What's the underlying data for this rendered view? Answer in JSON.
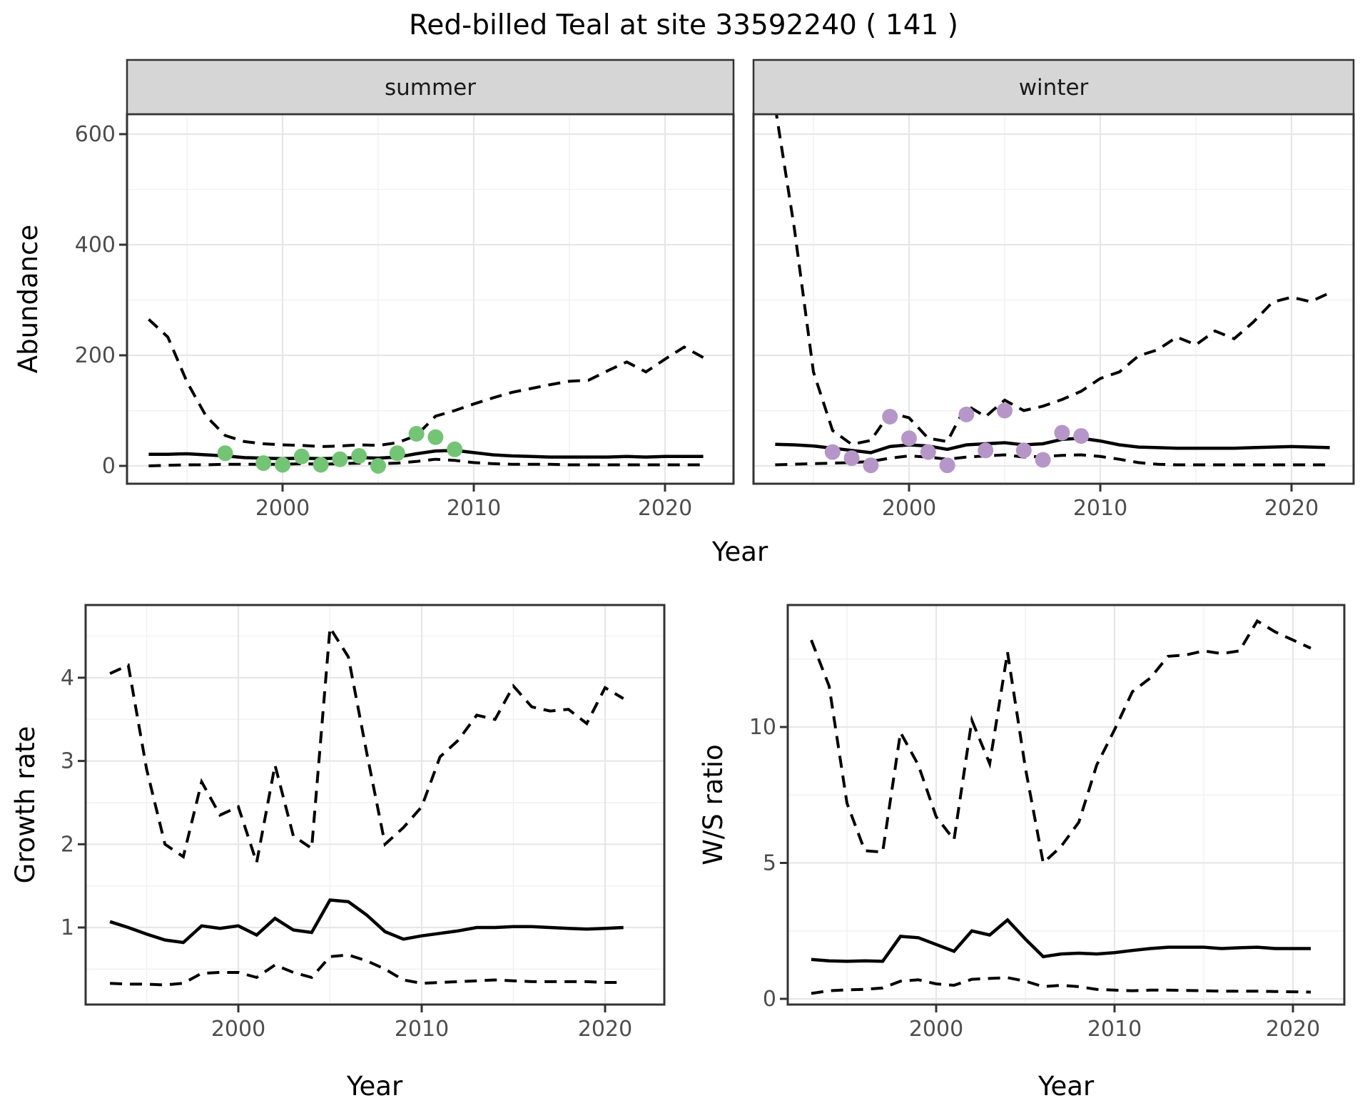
{
  "title": "Red-billed Teal at site 33592240 ( 141 )",
  "axis_titles": {
    "abundance": "Abundance",
    "growth_rate": "Growth rate",
    "ws_ratio": "W/S ratio",
    "year": "Year"
  },
  "facets": [
    {
      "label": "summer"
    },
    {
      "label": "winter"
    }
  ],
  "colors": {
    "summer_points": "#74c476",
    "winter_points": "#b696c8",
    "line": "#000000",
    "grid_major": "#e7e7e7",
    "grid_minor": "#f1f1f1",
    "strip_bg": "#d6d6d6",
    "panel_border": "#333333",
    "tick_label": "#4d4d4d"
  },
  "chart_data": [
    {
      "id": "abundance-summer",
      "type": "line",
      "facet_label": "summer",
      "xlabel": "Year",
      "ylabel": "Abundance",
      "legend_position": "none",
      "x": [
        1993,
        1994,
        1995,
        1996,
        1997,
        1998,
        1999,
        2000,
        2001,
        2002,
        2003,
        2004,
        2005,
        2006,
        2007,
        2008,
        2009,
        2010,
        2011,
        2012,
        2013,
        2014,
        2015,
        2016,
        2017,
        2018,
        2019,
        2020,
        2021,
        2022
      ],
      "series": [
        {
          "name": "upper-95-ci",
          "style": "dashed",
          "values": [
            265,
            233,
            152,
            90,
            55,
            44,
            40,
            38,
            37,
            35,
            36,
            38,
            37,
            42,
            55,
            90,
            100,
            112,
            123,
            133,
            140,
            147,
            153,
            155,
            172,
            188,
            170,
            193,
            215,
            196
          ]
        },
        {
          "name": "median",
          "style": "solid",
          "values": [
            21,
            21,
            22,
            20,
            18,
            15,
            14,
            13,
            14,
            13,
            14,
            15,
            14,
            16,
            22,
            27,
            28,
            24,
            20,
            18,
            17,
            16,
            16,
            16,
            16,
            17,
            16,
            17,
            17,
            17
          ]
        },
        {
          "name": "lower-95-ci",
          "style": "dashed",
          "values": [
            0,
            1,
            2,
            2,
            3,
            3,
            3,
            3,
            4,
            3,
            4,
            5,
            4,
            5,
            8,
            12,
            10,
            6,
            4,
            3,
            3,
            3,
            2,
            2,
            2,
            2,
            2,
            2,
            2,
            2
          ]
        }
      ],
      "observed_points": {
        "color": "#74c476",
        "data": [
          [
            1997,
            23
          ],
          [
            1999,
            5
          ],
          [
            2000,
            2
          ],
          [
            2001,
            17
          ],
          [
            2002,
            2
          ],
          [
            2003,
            12
          ],
          [
            2004,
            18
          ],
          [
            2005,
            0
          ],
          [
            2006,
            23
          ],
          [
            2007,
            58
          ],
          [
            2008,
            52
          ],
          [
            2009,
            30
          ]
        ]
      },
      "axes": {
        "x_major": [
          2000,
          2010,
          2020
        ],
        "x_minor": [
          1995,
          2005,
          2015
        ],
        "x_range": [
          1991.9,
          2023.6
        ],
        "y_major": [
          0,
          200,
          400,
          600
        ],
        "y_minor": [
          100,
          300,
          500
        ],
        "y_range": [
          -32,
          637
        ],
        "grid": true
      }
    },
    {
      "id": "abundance-winter",
      "type": "line",
      "facet_label": "winter",
      "xlabel": "Year",
      "ylabel": "Abundance",
      "legend_position": "none",
      "x": [
        1993,
        1994,
        1995,
        1996,
        1997,
        1998,
        1999,
        2000,
        2001,
        2002,
        2003,
        2004,
        2005,
        2006,
        2007,
        2008,
        2009,
        2010,
        2011,
        2012,
        2013,
        2014,
        2015,
        2016,
        2017,
        2018,
        2019,
        2020,
        2021,
        2022
      ],
      "series": [
        {
          "name": "upper-95-ci",
          "style": "dashed",
          "values": [
            650,
            430,
            170,
            64,
            39,
            46,
            96,
            87,
            50,
            44,
            110,
            89,
            119,
            100,
            108,
            120,
            135,
            158,
            170,
            199,
            210,
            233,
            219,
            244,
            230,
            260,
            296,
            305,
            297,
            313
          ]
        },
        {
          "name": "median",
          "style": "solid",
          "values": [
            39,
            38,
            36,
            32,
            28,
            24,
            35,
            38,
            36,
            30,
            38,
            40,
            42,
            38,
            40,
            48,
            50,
            45,
            38,
            34,
            33,
            32,
            32,
            32,
            32,
            33,
            34,
            35,
            34,
            33
          ]
        },
        {
          "name": "lower-95-ci",
          "style": "dashed",
          "values": [
            2,
            3,
            4,
            5,
            6,
            8,
            14,
            18,
            16,
            12,
            16,
            18,
            20,
            16,
            17,
            19,
            20,
            17,
            12,
            6,
            3,
            2,
            2,
            2,
            2,
            2,
            2,
            2,
            2,
            2
          ]
        }
      ],
      "observed_points": {
        "color": "#b696c8",
        "data": [
          [
            1996,
            25
          ],
          [
            1997,
            14
          ],
          [
            1998,
            1
          ],
          [
            1999,
            89
          ],
          [
            2000,
            50
          ],
          [
            2001,
            25
          ],
          [
            2002,
            1
          ],
          [
            2003,
            93
          ],
          [
            2004,
            28
          ],
          [
            2005,
            100
          ],
          [
            2006,
            28
          ],
          [
            2007,
            11
          ],
          [
            2008,
            60
          ],
          [
            2009,
            54
          ]
        ]
      },
      "axes": {
        "x_major": [
          2000,
          2010,
          2020
        ],
        "x_minor": [
          1995,
          2005,
          2015
        ],
        "x_range": [
          1991.9,
          2023.6
        ],
        "y_major": [
          0,
          200,
          400,
          600
        ],
        "y_minor": [
          100,
          300,
          500
        ],
        "y_range": [
          -32,
          637
        ],
        "grid": true
      }
    },
    {
      "id": "growth-rate",
      "type": "line",
      "facet_label": null,
      "xlabel": "Year",
      "ylabel": "Growth rate",
      "legend_position": "none",
      "x": [
        1993,
        1994,
        1995,
        1996,
        1997,
        1998,
        1999,
        2000,
        2001,
        2002,
        2003,
        2004,
        2005,
        2006,
        2007,
        2008,
        2009,
        2010,
        2011,
        2012,
        2013,
        2014,
        2015,
        2016,
        2017,
        2018,
        2019,
        2020,
        2021
      ],
      "series": [
        {
          "name": "upper-95-ci",
          "style": "dashed",
          "values": [
            4.05,
            4.15,
            2.9,
            2.0,
            1.85,
            2.75,
            2.35,
            2.45,
            1.78,
            2.95,
            2.1,
            1.95,
            4.6,
            4.25,
            3.1,
            2.0,
            2.2,
            2.45,
            3.05,
            3.25,
            3.55,
            3.5,
            3.9,
            3.65,
            3.6,
            3.62,
            3.45,
            3.88,
            3.75
          ]
        },
        {
          "name": "median",
          "style": "solid",
          "values": [
            1.07,
            1.0,
            0.92,
            0.85,
            0.82,
            1.02,
            0.99,
            1.02,
            0.91,
            1.11,
            0.97,
            0.94,
            1.33,
            1.31,
            1.15,
            0.95,
            0.86,
            0.9,
            0.93,
            0.96,
            1.0,
            1.0,
            1.01,
            1.01,
            1.0,
            0.99,
            0.98,
            0.99,
            1.0
          ]
        },
        {
          "name": "lower-95-ci",
          "style": "dashed",
          "values": [
            0.33,
            0.32,
            0.32,
            0.31,
            0.33,
            0.45,
            0.46,
            0.46,
            0.4,
            0.55,
            0.46,
            0.4,
            0.65,
            0.67,
            0.6,
            0.5,
            0.37,
            0.33,
            0.34,
            0.35,
            0.36,
            0.37,
            0.36,
            0.35,
            0.35,
            0.35,
            0.35,
            0.34,
            0.34
          ]
        }
      ],
      "observed_points": null,
      "axes": {
        "x_major": [
          2000,
          2010,
          2020
        ],
        "x_minor": [
          1995,
          2005,
          2015
        ],
        "x_range": [
          1991.7,
          2023.2
        ],
        "y_major": [
          1,
          2,
          3,
          4
        ],
        "y_minor": [
          0.5,
          1.5,
          2.5,
          3.5,
          4.5
        ],
        "y_range": [
          0.07,
          4.87
        ],
        "grid": true
      }
    },
    {
      "id": "ws-ratio",
      "type": "line",
      "facet_label": null,
      "xlabel": "Year",
      "ylabel": "W/S ratio",
      "legend_position": "none",
      "x": [
        1993,
        1994,
        1995,
        1996,
        1997,
        1998,
        1999,
        2000,
        2001,
        2002,
        2003,
        2004,
        2005,
        2006,
        2007,
        2008,
        2009,
        2010,
        2011,
        2012,
        2013,
        2014,
        2015,
        2016,
        2017,
        2018,
        2019,
        2020,
        2021
      ],
      "series": [
        {
          "name": "upper-95-ci",
          "style": "dashed",
          "values": [
            13.2,
            11.5,
            7.2,
            5.45,
            5.4,
            9.8,
            8.6,
            6.7,
            5.85,
            10.25,
            8.65,
            12.75,
            8.5,
            5.0,
            5.6,
            6.5,
            8.6,
            9.9,
            11.3,
            11.8,
            12.6,
            12.65,
            12.8,
            12.7,
            12.8,
            13.9,
            13.5,
            13.2,
            12.9
          ]
        },
        {
          "name": "median",
          "style": "solid",
          "values": [
            1.45,
            1.4,
            1.38,
            1.4,
            1.38,
            2.3,
            2.25,
            2.0,
            1.75,
            2.5,
            2.35,
            2.9,
            2.2,
            1.55,
            1.65,
            1.68,
            1.65,
            1.7,
            1.78,
            1.85,
            1.9,
            1.9,
            1.9,
            1.85,
            1.88,
            1.9,
            1.85,
            1.85,
            1.85
          ]
        },
        {
          "name": "lower-95-ci",
          "style": "dashed",
          "values": [
            0.2,
            0.3,
            0.33,
            0.35,
            0.4,
            0.65,
            0.7,
            0.55,
            0.5,
            0.72,
            0.75,
            0.78,
            0.65,
            0.45,
            0.5,
            0.45,
            0.35,
            0.32,
            0.3,
            0.32,
            0.32,
            0.31,
            0.3,
            0.28,
            0.28,
            0.28,
            0.27,
            0.26,
            0.25
          ]
        }
      ],
      "observed_points": null,
      "axes": {
        "x_major": [
          2000,
          2010,
          2020
        ],
        "x_minor": [
          1995,
          2005,
          2015
        ],
        "x_range": [
          1991.7,
          2023.4
        ],
        "y_major": [
          0,
          5,
          10
        ],
        "y_minor": [
          2.5,
          7.5,
          12.5
        ],
        "y_range": [
          -0.21,
          14.5
        ],
        "grid": true
      }
    }
  ]
}
